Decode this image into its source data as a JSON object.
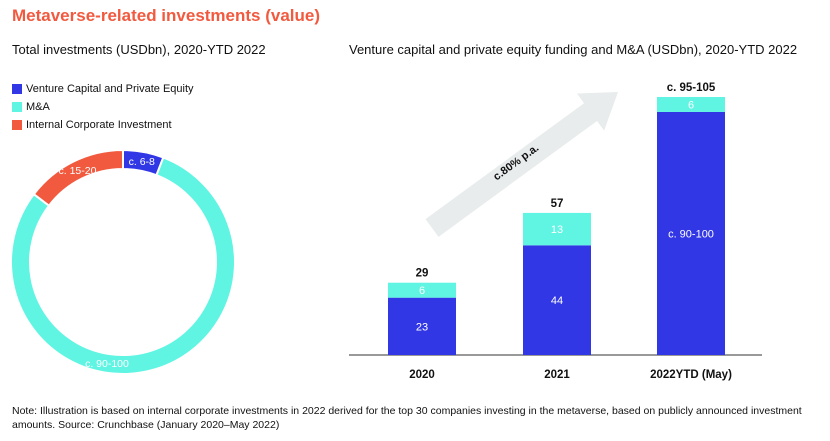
{
  "page": {
    "title": "Metaverse-related investments (value)",
    "note": "Note: Illustration is based on internal corporate investments in 2022 derived for the top 30 companies investing in the metaverse, based on publicly announced investment amounts. Source: Crunchbase (January 2020–May 2022)"
  },
  "colors": {
    "title": "#f15a3f",
    "vc_pe": "#3237e6",
    "ma": "#5ff5e2",
    "ici": "#f15a3f",
    "arrow": "#e8ecec",
    "axis": "#333333"
  },
  "legend": [
    {
      "label": "Venture Capital and Private Equity",
      "color": "#3237e6"
    },
    {
      "label": "M&A",
      "color": "#5ff5e2"
    },
    {
      "label": "Internal Corporate Investment",
      "color": "#f15a3f"
    }
  ],
  "chart_data": [
    {
      "type": "pie",
      "title": "Total investments (USDbn), 2020-YTD 2022",
      "donut": true,
      "slices": [
        {
          "category": "Venture Capital and Private Equity",
          "label": "c. 6-8",
          "value": 7,
          "color": "#3237e6"
        },
        {
          "category": "M&A",
          "label": "c. 90-100",
          "value": 95,
          "color": "#5ff5e2"
        },
        {
          "category": "Internal Corporate Investment",
          "label": "c. 15-20",
          "value": 17.5,
          "color": "#f15a3f"
        }
      ]
    },
    {
      "type": "bar",
      "stacked": true,
      "title": "Venture capital and private equity funding and M&A (USDbn), 2020-YTD 2022",
      "categories": [
        "2020",
        "2021",
        "2022YTD (May)"
      ],
      "series": [
        {
          "name": "Venture Capital and Private Equity",
          "values": [
            23,
            44,
            97.5
          ],
          "labels": [
            "23",
            "44",
            "c. 90-100"
          ],
          "color": "#3237e6"
        },
        {
          "name": "M&A",
          "values": [
            6,
            13,
            6
          ],
          "labels": [
            "6",
            "13",
            "6"
          ],
          "color": "#5ff5e2"
        }
      ],
      "totals": [
        "29",
        "57",
        "c. 95-105"
      ],
      "ylim": [
        0,
        110
      ],
      "grid": false,
      "annotation": "c.80% p.a."
    }
  ]
}
